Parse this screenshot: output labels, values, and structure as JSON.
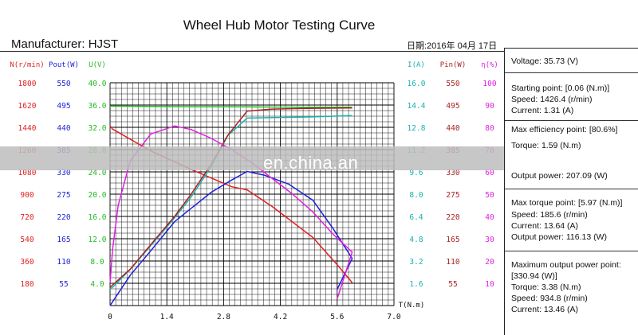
{
  "header": {
    "title": "Wheel Hub Motor Testing Curve",
    "manufacturer": "Manufacturer:  HJST",
    "date": "日期:2016年 04月 17日"
  },
  "watermark": "en.china.an",
  "colors": {
    "speed": "#e01f1f",
    "pout": "#1f1fd8",
    "voltage": "#22bb22",
    "current": "#19b0b0",
    "pin": "#aa2222",
    "efficiency": "#e020e0",
    "grid": "#000000"
  },
  "panel": {
    "voltage": "Voltage: 35.73 (V)",
    "start_title": "Starting point: [0.06 (N.m)]",
    "start_speed": "Speed: 1426.4 (r/min)",
    "start_current": "Current: 1.31 (A)",
    "eff_title": "Max efficiency point: [80.6%]",
    "eff_torque": "Torque: 1.59 (N.m)",
    "eff_output": "Output power: 207.09 (W)",
    "torque_title": "Max torque point: [5.97 (N.m)]",
    "torque_speed": "Speed: 185.6 (r/min)",
    "torque_current": "Current: 13.64 (A)",
    "torque_output": "Output power: 116.13 (W)",
    "maxp_title": "Maximum output power point:",
    "maxp_value": "[330.94 (W)]",
    "maxp_torque": "Torque: 3.38 (N.m)",
    "maxp_speed": "Speed: 934.8 (r/min)",
    "maxp_current": "Current: 13.46 (A)"
  },
  "chart_data": {
    "type": "line",
    "xlabel": "T(N.m)",
    "xlim": [
      0,
      7.0
    ],
    "x_ticks": [
      "0",
      "1.4",
      "2.8",
      "4.2",
      "5.6",
      "7.0"
    ],
    "axes": {
      "speed": {
        "label": "N(r/min)",
        "ticks": [
          "1800",
          "1620",
          "1440",
          "1260",
          "1080",
          "900",
          "720",
          "540",
          "360",
          "180"
        ],
        "lim": [
          0,
          1800
        ]
      },
      "pout": {
        "label": "Pout(W)",
        "ticks": [
          "550",
          "495",
          "440",
          "385",
          "330",
          "275",
          "220",
          "165",
          "110",
          "55"
        ],
        "lim": [
          0,
          550
        ]
      },
      "voltage": {
        "label": "U(V)",
        "ticks": [
          "40.0",
          "36.0",
          "32.0",
          "28.0",
          "24.0",
          "20.0",
          "16.0",
          "12.0",
          "8.0",
          "4.0"
        ],
        "lim": [
          0,
          40
        ]
      },
      "current": {
        "label": "I(A)",
        "ticks": [
          "16.0",
          "14.4",
          "12.8",
          "11.2",
          "9.6",
          "8.0",
          "6.4",
          "4.8",
          "3.2",
          "1.6"
        ],
        "lim": [
          0,
          16
        ]
      },
      "pin": {
        "label": "Pin(W)",
        "ticks": [
          "550",
          "495",
          "440",
          "385",
          "330",
          "275",
          "220",
          "165",
          "110",
          "55"
        ],
        "lim": [
          0,
          550
        ]
      },
      "efficiency": {
        "label": "η(%)",
        "ticks": [
          "100",
          "90",
          "80",
          "70",
          "60",
          "50",
          "40",
          "30",
          "20",
          "10"
        ],
        "lim": [
          0,
          100
        ]
      }
    },
    "series": [
      {
        "name": "N(r/min)",
        "axis": "speed",
        "color": "#e01f1f",
        "x": [
          0.0,
          0.06,
          1.0,
          2.0,
          3.0,
          3.38,
          4.0,
          5.0,
          5.6,
          5.97
        ],
        "y": [
          1450,
          1426,
          1250,
          1100,
          960,
          934.8,
          800,
          550,
          330,
          185.6
        ]
      },
      {
        "name": "Pout(W)",
        "axis": "pout",
        "color": "#1f1fd8",
        "x": [
          0.0,
          0.5,
          1.0,
          1.59,
          2.0,
          2.5,
          3.0,
          3.38,
          3.8,
          4.4,
          5.0,
          5.5,
          5.97,
          5.6
        ],
        "y": [
          0,
          75,
          135,
          207,
          240,
          280,
          310,
          330.9,
          322,
          300,
          260,
          190,
          116,
          40
        ]
      },
      {
        "name": "U(V)",
        "axis": "voltage",
        "color": "#22bb22",
        "x": [
          0.0,
          1.0,
          2.0,
          3.0,
          4.0,
          5.0,
          5.97
        ],
        "y": [
          35.8,
          35.75,
          35.7,
          35.7,
          35.65,
          35.6,
          35.6
        ]
      },
      {
        "name": "I(A)",
        "axis": "current",
        "color": "#19b0b0",
        "x": [
          0.0,
          0.06,
          0.5,
          1.0,
          1.59,
          2.0,
          2.5,
          2.9,
          3.38,
          4.0,
          5.0,
          5.97
        ],
        "y": [
          1.2,
          1.31,
          2.6,
          4.3,
          6.3,
          7.8,
          10.0,
          12.2,
          13.46,
          13.5,
          13.55,
          13.64
        ]
      },
      {
        "name": "Pin(W)",
        "axis": "pin",
        "color": "#aa2222",
        "x": [
          0.0,
          0.5,
          1.0,
          1.59,
          2.0,
          2.5,
          2.9,
          3.38,
          4.0,
          5.0,
          5.97
        ],
        "y": [
          45,
          90,
          150,
          220,
          275,
          350,
          420,
          480,
          485,
          487,
          488
        ]
      },
      {
        "name": "η(%)",
        "axis": "efficiency",
        "color": "#e020e0",
        "x": [
          0.0,
          0.06,
          0.2,
          0.5,
          1.0,
          1.59,
          2.0,
          2.5,
          3.0,
          3.5,
          4.0,
          4.5,
          5.0,
          5.5,
          5.97,
          5.6
        ],
        "y": [
          10,
          25,
          45,
          65,
          77,
          80.6,
          79,
          75,
          70,
          64,
          57,
          50,
          42,
          32,
          24,
          3
        ]
      }
    ],
    "grid": true
  }
}
